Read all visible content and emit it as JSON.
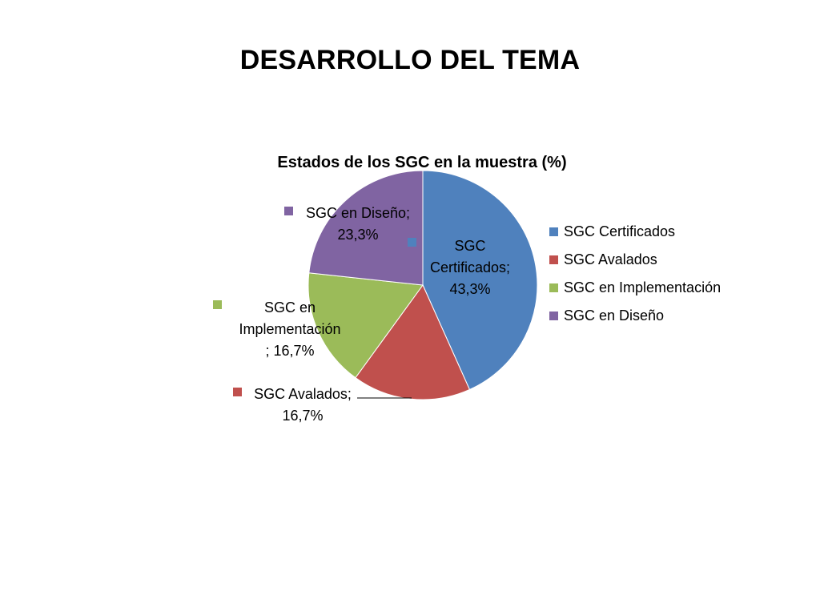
{
  "slide": {
    "title": "DESARROLLO DEL TEMA"
  },
  "chart_data": {
    "type": "pie",
    "title": "Estados de los SGC en la muestra (%)",
    "legend_position": "right",
    "series": [
      {
        "slices": [
          {
            "label": "SGC Certificados",
            "value": 43.3,
            "display": "43,3%",
            "color": "#4F81BD"
          },
          {
            "label": "SGC Avalados",
            "value": 16.7,
            "display": "16,7%",
            "color": "#C0504D"
          },
          {
            "label": "SGC en Implementación",
            "value": 16.7,
            "display": "16,7%",
            "color": "#9BBB59"
          },
          {
            "label": "SGC en Diseño",
            "value": 23.3,
            "display": "23,3%",
            "color": "#8064A2"
          }
        ]
      }
    ],
    "data_labels": [
      {
        "lines": [
          "SGC",
          "Certificados;",
          "43,3%"
        ]
      },
      {
        "lines": [
          "SGC Avalados;",
          "16,7%"
        ]
      },
      {
        "lines": [
          "SGC en",
          "Implementación",
          "; 16,7%"
        ]
      },
      {
        "lines": [
          "SGC en Diseño;",
          "23,3%"
        ]
      }
    ]
  }
}
